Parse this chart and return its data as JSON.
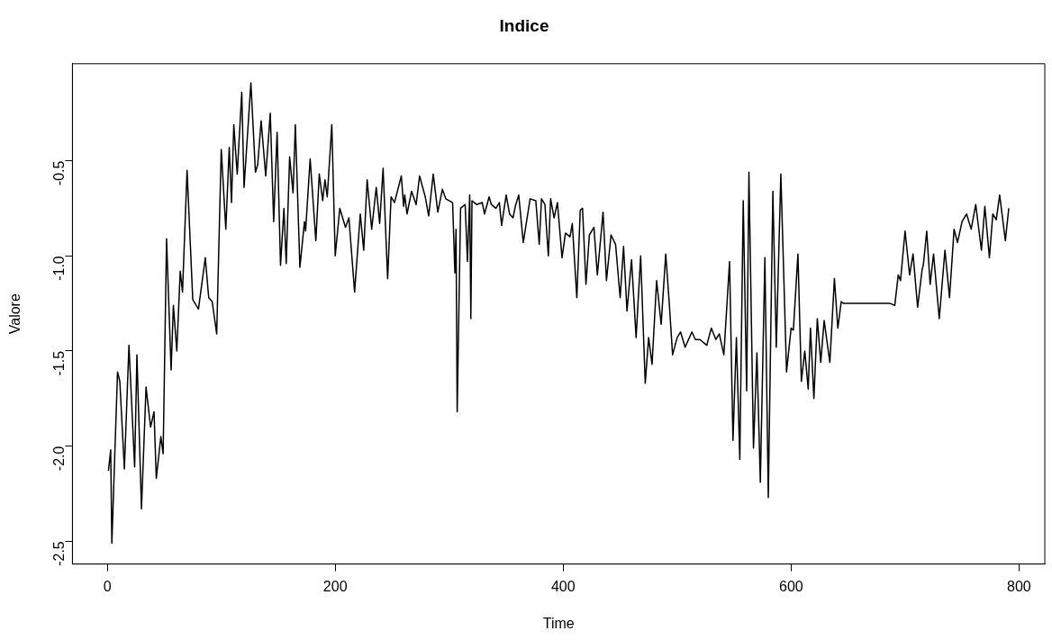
{
  "chart_data": {
    "type": "line",
    "title": "Indice",
    "xlabel": "Time",
    "ylabel": "Valore",
    "xlim": [
      -30.6,
      822.6
    ],
    "xticks": [
      0,
      200,
      400,
      600,
      800
    ],
    "ylim": [
      -2.62,
      0.01
    ],
    "yticks": [
      {
        "value": -2.5,
        "label": "-2.5"
      },
      {
        "value": -2,
        "label": "-2.0"
      },
      {
        "value": -1.5,
        "label": "-1.5"
      },
      {
        "value": -1,
        "label": "-1.0"
      },
      {
        "value": -0.5,
        "label": "-0.5"
      }
    ],
    "grid": false,
    "legend": false,
    "marker": "none",
    "line_style": "solid",
    "x": [
      1,
      3,
      4,
      9,
      11,
      15,
      19,
      24,
      26,
      30,
      34,
      38,
      41,
      43,
      47,
      49,
      52,
      56,
      58,
      61,
      64,
      66,
      70,
      75,
      80,
      86,
      89,
      92,
      96,
      100,
      104,
      107,
      109,
      111,
      114,
      118,
      120,
      126,
      130,
      132,
      135,
      139,
      143,
      146,
      149,
      152,
      155,
      157,
      160,
      163,
      165,
      169,
      173,
      174,
      178,
      183,
      186,
      189,
      191,
      193,
      197,
      200,
      204,
      209,
      212,
      217,
      222,
      225,
      228,
      232,
      236,
      239,
      242,
      246,
      249,
      252,
      258,
      260,
      261,
      263,
      267,
      271,
      274,
      279,
      282,
      286,
      290,
      294,
      297,
      303,
      305,
      306,
      307,
      310,
      314,
      316,
      318,
      319,
      320,
      324,
      329,
      331,
      335,
      337,
      341,
      344,
      346,
      350,
      353,
      356,
      358,
      361,
      365,
      371,
      376,
      379,
      381,
      384,
      387,
      389,
      392,
      395,
      399,
      402,
      406,
      408,
      412,
      415,
      417,
      420,
      423,
      427,
      430,
      435,
      438,
      442,
      446,
      450,
      453,
      456,
      460,
      464,
      468,
      472,
      475,
      478,
      482,
      486,
      490,
      493,
      496,
      500,
      503,
      507,
      513,
      516,
      520,
      526,
      530,
      534,
      537,
      541,
      546,
      549,
      552,
      555,
      558,
      561,
      563,
      567,
      570,
      573,
      577,
      580,
      584,
      587,
      591,
      596,
      600,
      602,
      606,
      609,
      612,
      615,
      617,
      620,
      623,
      626,
      629,
      634,
      638,
      641,
      644,
      646,
      648,
      651,
      656,
      681,
      684,
      687,
      691,
      694,
      696,
      700,
      704,
      707,
      711,
      715,
      716,
      719,
      722,
      725,
      730,
      735,
      739,
      743,
      746,
      750,
      754,
      758,
      762,
      767,
      770,
      774,
      777,
      780,
      783,
      788,
      791
    ],
    "values": [
      -2.13,
      -2.02,
      -2.51,
      -1.61,
      -1.66,
      -2.12,
      -1.47,
      -2.11,
      -1.52,
      -2.33,
      -1.69,
      -1.9,
      -1.82,
      -2.17,
      -1.95,
      -2.04,
      -0.91,
      -1.6,
      -1.26,
      -1.5,
      -1.08,
      -1.19,
      -0.55,
      -1.23,
      -1.28,
      -1.01,
      -1.22,
      -1.24,
      -1.41,
      -0.44,
      -0.86,
      -0.43,
      -0.72,
      -0.31,
      -0.57,
      -0.14,
      -0.64,
      -0.09,
      -0.56,
      -0.52,
      -0.29,
      -0.58,
      -0.25,
      -0.82,
      -0.35,
      -1.05,
      -0.75,
      -1.04,
      -0.48,
      -0.67,
      -0.31,
      -1.06,
      -0.82,
      -0.87,
      -0.49,
      -0.92,
      -0.57,
      -0.71,
      -0.6,
      -0.69,
      -0.31,
      -1.0,
      -0.75,
      -0.85,
      -0.8,
      -1.19,
      -0.78,
      -0.97,
      -0.6,
      -0.86,
      -0.64,
      -0.83,
      -0.54,
      -1.12,
      -0.69,
      -0.72,
      -0.58,
      -0.74,
      -0.68,
      -0.78,
      -0.66,
      -0.73,
      -0.58,
      -0.69,
      -0.79,
      -0.57,
      -0.77,
      -0.65,
      -0.7,
      -0.72,
      -1.09,
      -0.86,
      -1.82,
      -0.75,
      -0.73,
      -1.03,
      -0.68,
      -1.33,
      -0.71,
      -0.73,
      -0.72,
      -0.78,
      -0.69,
      -0.73,
      -0.75,
      -0.72,
      -0.84,
      -0.68,
      -0.78,
      -0.8,
      -0.74,
      -0.68,
      -0.93,
      -0.7,
      -0.71,
      -0.94,
      -0.7,
      -0.73,
      -1.0,
      -0.7,
      -0.8,
      -0.72,
      -1.01,
      -0.88,
      -0.9,
      -0.83,
      -1.22,
      -0.76,
      -0.75,
      -1.15,
      -0.89,
      -0.85,
      -1.1,
      -0.77,
      -1.13,
      -0.89,
      -0.94,
      -1.22,
      -0.95,
      -1.29,
      -1.02,
      -1.43,
      -1.0,
      -1.67,
      -1.43,
      -1.57,
      -1.13,
      -1.36,
      -0.99,
      -1.24,
      -1.52,
      -1.43,
      -1.4,
      -1.48,
      -1.4,
      -1.44,
      -1.44,
      -1.47,
      -1.38,
      -1.44,
      -1.41,
      -1.52,
      -1.03,
      -1.97,
      -1.43,
      -2.07,
      -0.71,
      -1.71,
      -0.56,
      -2.01,
      -1.51,
      -2.19,
      -1.01,
      -2.27,
      -0.66,
      -1.48,
      -0.57,
      -1.61,
      -1.38,
      -1.39,
      -0.99,
      -1.66,
      -1.5,
      -1.7,
      -1.38,
      -1.75,
      -1.33,
      -1.56,
      -1.34,
      -1.56,
      -1.12,
      -1.38,
      -1.24,
      -1.25,
      -1.25,
      -1.25,
      -1.25,
      -1.25,
      -1.25,
      -1.25,
      -1.26,
      -1.1,
      -1.13,
      -0.87,
      -1.1,
      -0.99,
      -1.27,
      -1.07,
      -1.05,
      -0.87,
      -1.15,
      -0.99,
      -1.33,
      -0.97,
      -1.22,
      -0.86,
      -0.93,
      -0.82,
      -0.78,
      -0.86,
      -0.73,
      -0.97,
      -0.74,
      -1.01,
      -0.78,
      -0.81,
      -0.68,
      -0.92,
      -0.75
    ],
    "color": "#000000"
  }
}
